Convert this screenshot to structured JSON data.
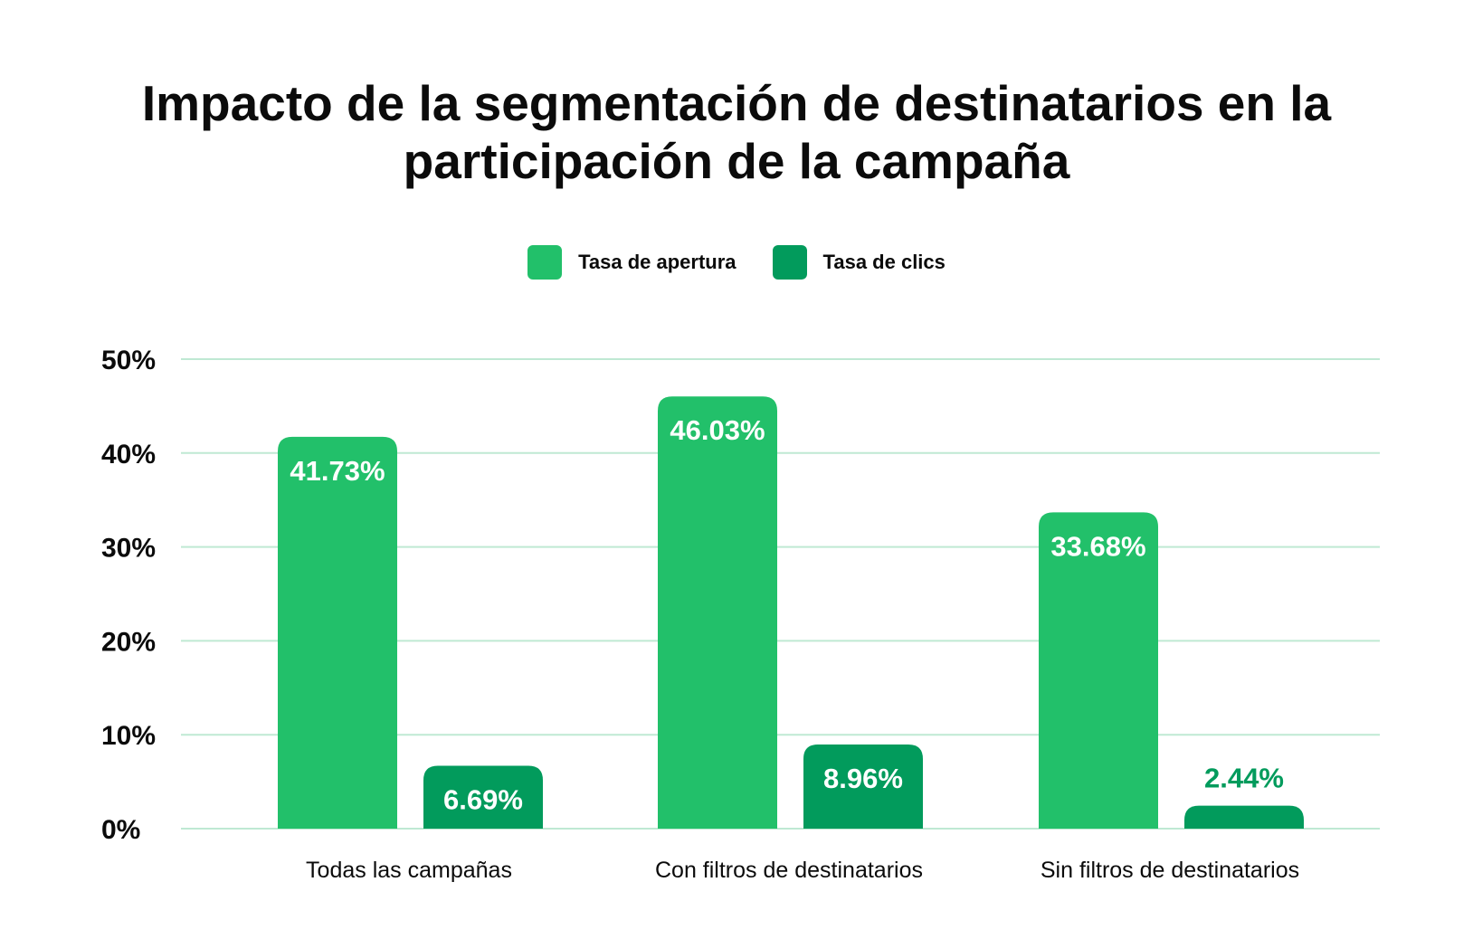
{
  "chart_data": {
    "type": "bar",
    "title_lines": [
      "Impacto de la segmentación de destinatarios en la",
      "participación de la campaña"
    ],
    "categories": [
      "Todas las campañas",
      "Con filtros de destinatarios",
      "Sin filtros de destinatarios"
    ],
    "series": [
      {
        "name": "Tasa de apertura",
        "color": "#22c06a",
        "values": [
          41.73,
          46.03,
          33.68
        ],
        "labels": [
          "41.73%",
          "46.03%",
          "33.68%"
        ]
      },
      {
        "name": "Tasa de clics",
        "color": "#029b5c",
        "values": [
          6.69,
          8.96,
          2.44
        ],
        "labels": [
          "6.69%",
          "8.96%",
          "2.44%"
        ]
      }
    ],
    "yticks": [
      0,
      10,
      20,
      30,
      40,
      50
    ],
    "ytick_labels": [
      "0%",
      "10%",
      "20%",
      "30%",
      "40%",
      "50%"
    ],
    "ylim": [
      0,
      50
    ],
    "grid": true,
    "gridline_color": "#bfe9d3",
    "legend_position": "top-center",
    "xlabel": "",
    "ylabel": ""
  }
}
